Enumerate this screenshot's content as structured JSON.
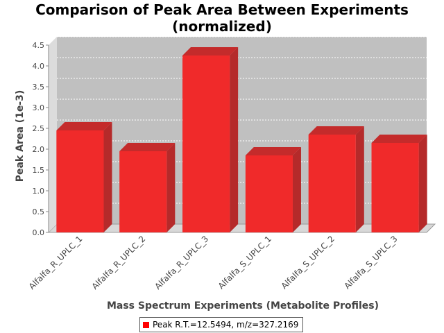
{
  "chart_data": {
    "type": "bar",
    "title": "Comparison of Peak Area Between Experiments",
    "subtitle": "(normalized)",
    "xlabel": "Mass Spectrum Experiments (Metabolite Profiles)",
    "ylabel": "Peak Area (1e-3)",
    "categories": [
      "Alfalfa_R_UPLC_1",
      "Alfalfa_R_UPLC_2",
      "Alfalfa_R_UPLC_3",
      "Alfalfa_S_UPLC_1",
      "Alfalfa_S_UPLC_2",
      "Alfalfa_S_UPLC_3"
    ],
    "series": [
      {
        "name": "Peak R.T.=12.5494, m/z=327.2169",
        "values": [
          2.45,
          1.95,
          4.25,
          1.85,
          2.35,
          2.15
        ]
      }
    ],
    "ylim": [
      0,
      4.5
    ],
    "yticks": [
      "0.0",
      "0.5",
      "1.0",
      "1.5",
      "2.0",
      "2.5",
      "3.0",
      "3.5",
      "4.0",
      "4.5"
    ],
    "grid": true,
    "legend_position": "bottom",
    "colors": {
      "bar": "#ff0000",
      "plot_background": "#c0c0c0",
      "gridline": "#ffffff"
    }
  }
}
